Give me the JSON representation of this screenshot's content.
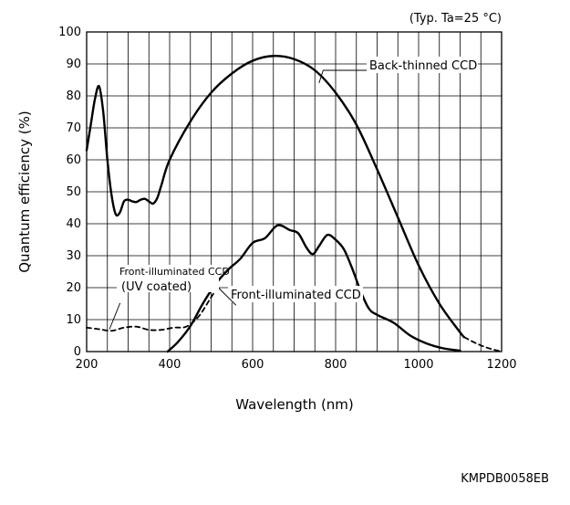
{
  "chart_data": {
    "type": "line",
    "title": "",
    "condition_note": "(Typ. Ta=25 °C)",
    "xlabel": "Wavelength (nm)",
    "ylabel": "Quantum efficiency (%)",
    "xlim": [
      200,
      1200
    ],
    "ylim": [
      0,
      100
    ],
    "x_ticks": [
      200,
      400,
      600,
      800,
      1000,
      1200
    ],
    "y_ticks": [
      0,
      10,
      20,
      30,
      40,
      50,
      60,
      70,
      80,
      90,
      100
    ],
    "grid": true,
    "legend": "none",
    "annotations": {
      "back_thinned": "Back-thinned CCD",
      "front_illuminated": "Front-illuminated CCD",
      "front_uv_line1": "Front-illuminated CCD",
      "front_uv_line2": "(UV coated)"
    },
    "series": [
      {
        "id": "back_thinned",
        "color": "#000000",
        "dashed": false,
        "points": [
          [
            200,
            63
          ],
          [
            210,
            71
          ],
          [
            220,
            79
          ],
          [
            230,
            83
          ],
          [
            240,
            75
          ],
          [
            250,
            60
          ],
          [
            260,
            49
          ],
          [
            270,
            43
          ],
          [
            280,
            43.5
          ],
          [
            290,
            47
          ],
          [
            300,
            47.5
          ],
          [
            310,
            47
          ],
          [
            320,
            46.8
          ],
          [
            330,
            47.5
          ],
          [
            340,
            47.8
          ],
          [
            350,
            47
          ],
          [
            360,
            46.3
          ],
          [
            370,
            48
          ],
          [
            380,
            52
          ],
          [
            400,
            60
          ],
          [
            450,
            72
          ],
          [
            500,
            81
          ],
          [
            550,
            87
          ],
          [
            600,
            91
          ],
          [
            650,
            92.5
          ],
          [
            700,
            91.5
          ],
          [
            750,
            88
          ],
          [
            800,
            81
          ],
          [
            850,
            71
          ],
          [
            900,
            57
          ],
          [
            950,
            42
          ],
          [
            1000,
            27
          ],
          [
            1050,
            15
          ],
          [
            1100,
            6
          ],
          [
            1110,
            4.5
          ]
        ]
      },
      {
        "id": "back_thinned_tail",
        "color": "#000000",
        "dashed": true,
        "points": [
          [
            1110,
            4.5
          ],
          [
            1140,
            2.5
          ],
          [
            1170,
            1
          ],
          [
            1200,
            0
          ]
        ]
      },
      {
        "id": "front_illuminated",
        "color": "#000000",
        "dashed": false,
        "points": [
          [
            395,
            0
          ],
          [
            420,
            3
          ],
          [
            450,
            8
          ],
          [
            480,
            15
          ],
          [
            510,
            21
          ],
          [
            540,
            25.5
          ],
          [
            570,
            29
          ],
          [
            600,
            34
          ],
          [
            630,
            35.5
          ],
          [
            660,
            39.5
          ],
          [
            690,
            38
          ],
          [
            710,
            37
          ],
          [
            730,
            32.5
          ],
          [
            745,
            30.5
          ],
          [
            760,
            33
          ],
          [
            780,
            36.5
          ],
          [
            800,
            35
          ],
          [
            820,
            32
          ],
          [
            840,
            26
          ],
          [
            860,
            19
          ],
          [
            880,
            13.5
          ],
          [
            900,
            11.5
          ],
          [
            940,
            9
          ],
          [
            980,
            5
          ],
          [
            1020,
            2.5
          ],
          [
            1060,
            1
          ],
          [
            1100,
            0.3
          ]
        ]
      },
      {
        "id": "front_illuminated_uv",
        "color": "#000000",
        "dashed": true,
        "points": [
          [
            200,
            7.5
          ],
          [
            230,
            7
          ],
          [
            260,
            6.5
          ],
          [
            290,
            7.5
          ],
          [
            320,
            7.8
          ],
          [
            350,
            6.8
          ],
          [
            380,
            6.8
          ],
          [
            410,
            7.5
          ],
          [
            440,
            7.8
          ],
          [
            470,
            11
          ],
          [
            500,
            17
          ],
          [
            510,
            19
          ]
        ]
      }
    ]
  },
  "footer": {
    "doc_code": "KMPDB0058EB"
  }
}
